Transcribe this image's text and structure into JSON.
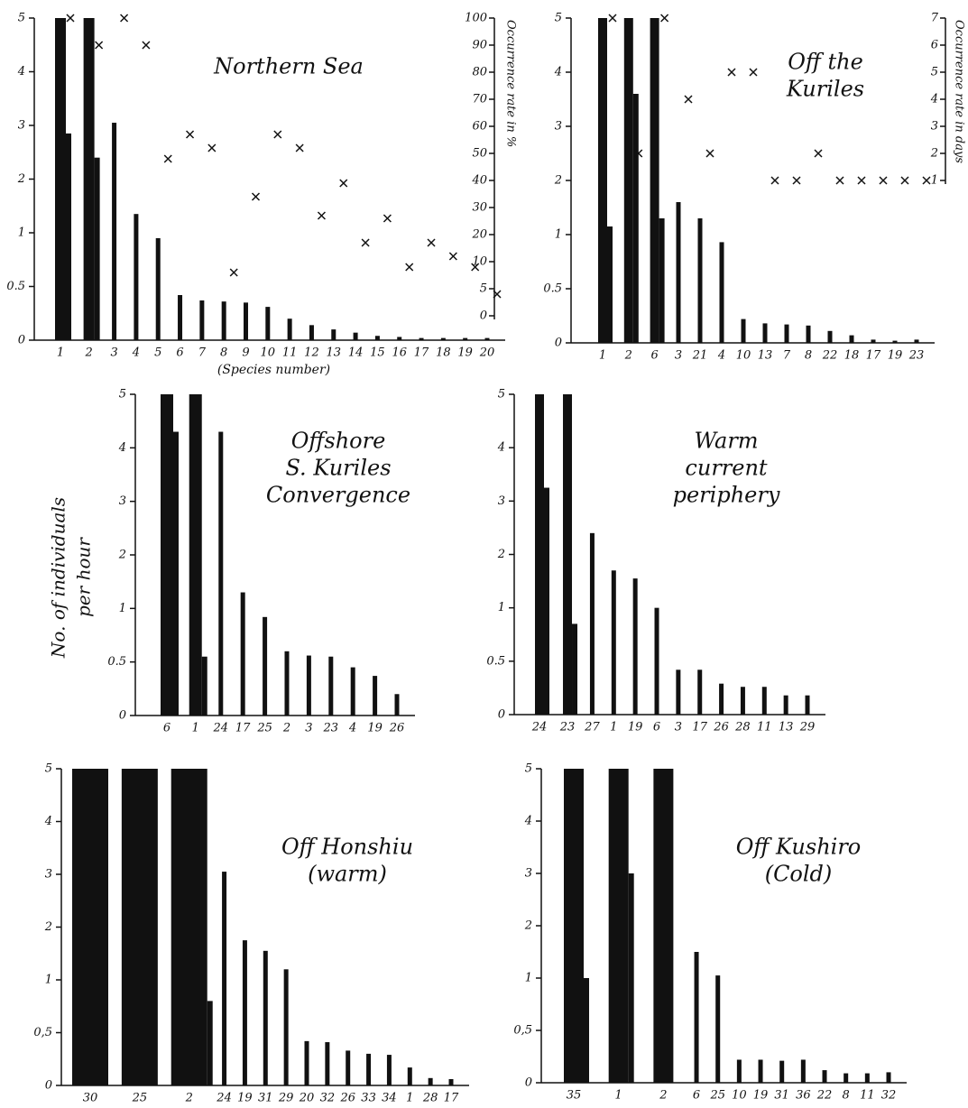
{
  "ylabel": [
    "No. of individuals",
    "per hour"
  ],
  "chart_data": [
    {
      "type": "bar",
      "title": [
        "Northern Sea"
      ],
      "xlabel": "(Species number)",
      "y2label": "Occurrence rate in %",
      "categories": [
        "1",
        "2",
        "3",
        "4",
        "5",
        "6",
        "7",
        "8",
        "9",
        "10",
        "11",
        "12",
        "13",
        "14",
        "15",
        "16",
        "17",
        "18",
        "19",
        "20"
      ],
      "series": [
        {
          "color": "#111111",
          "values": [
            5,
            5,
            3.05,
            1.35,
            0.95,
            0.42,
            0.37,
            0.36,
            0.35,
            0.31,
            0.2,
            0.14,
            0.1,
            0.07,
            0.04,
            0.03,
            0.02,
            0.02,
            0.02,
            0.02
          ]
        },
        {
          "color": "#111111",
          "values": [
            2.85,
            2.4,
            null,
            null,
            null,
            null,
            null,
            null,
            null,
            null,
            null,
            null,
            null,
            null,
            null,
            null,
            null,
            null,
            null,
            null
          ]
        },
        {
          "color": "#111111",
          "axis": "y2",
          "marker": "x",
          "values": [
            100,
            90,
            100,
            90,
            48,
            57,
            52,
            8,
            34,
            57,
            52,
            27,
            39,
            17,
            26,
            9,
            17,
            12,
            9,
            4
          ]
        }
      ],
      "ylim": [
        0,
        5
      ],
      "yticks": [
        0,
        0.5,
        1,
        2,
        3,
        4,
        5
      ],
      "yscale": "tick-spaced",
      "y2lim": [
        0,
        100
      ],
      "y2ticks": [
        0,
        5,
        10,
        20,
        30,
        40,
        50,
        60,
        70,
        80,
        90,
        100
      ],
      "y2scale": "tick-spaced"
    },
    {
      "type": "bar",
      "title": [
        "Off the",
        "Kuriles"
      ],
      "y2label": "Occurrence rate in days",
      "categories": [
        "1",
        "2",
        "6",
        "3",
        "21",
        "4",
        "10",
        "13",
        "7",
        "8",
        "22",
        "18",
        "17",
        "19",
        "23"
      ],
      "series": [
        {
          "color": "#111111",
          "values": [
            5,
            5,
            5,
            1.6,
            1.3,
            0.93,
            0.22,
            0.18,
            0.17,
            0.16,
            0.11,
            0.07,
            0.03,
            0.02,
            0.03
          ]
        },
        {
          "color": "#111111",
          "values": [
            1.15,
            3.6,
            1.3,
            null,
            null,
            null,
            null,
            null,
            null,
            null,
            null,
            null,
            null,
            null,
            null
          ]
        },
        {
          "color": "#111111",
          "axis": "y2",
          "marker": "x",
          "values": [
            7,
            2,
            7,
            4,
            2,
            5,
            5,
            1,
            1,
            2,
            1,
            1,
            1,
            1,
            1
          ]
        }
      ],
      "ylim": [
        0,
        5
      ],
      "yticks": [
        0,
        0.5,
        1,
        2,
        3,
        4,
        5
      ],
      "yscale": "tick-spaced",
      "y2lim": [
        1,
        7
      ],
      "y2ticks": [
        1,
        2,
        3,
        4,
        5,
        6,
        7
      ]
    },
    {
      "type": "bar",
      "title": [
        "Offshore",
        "S. Kuriles",
        "Convergence"
      ],
      "categories": [
        "6",
        "1",
        "24",
        "17",
        "25",
        "2",
        "3",
        "23",
        "4",
        "19",
        "26"
      ],
      "series": [
        {
          "color": "#111111",
          "values": [
            5,
            5,
            4.3,
            1.3,
            0.92,
            0.6,
            0.56,
            0.55,
            0.45,
            0.37,
            0.2
          ]
        },
        {
          "color": "#111111",
          "values": [
            4.3,
            0.55,
            null,
            null,
            null,
            null,
            null,
            null,
            null,
            null,
            null
          ]
        }
      ],
      "ylim": [
        0,
        5
      ],
      "yticks": [
        0,
        0.5,
        1,
        2,
        3,
        4,
        5
      ],
      "yscale": "tick-spaced"
    },
    {
      "type": "bar",
      "title": [
        "Warm",
        "current",
        "periphery"
      ],
      "categories": [
        "24",
        "23",
        "27",
        "1",
        "19",
        "6",
        "3",
        "17",
        "26",
        "28",
        "11",
        "13",
        "29"
      ],
      "series": [
        {
          "color": "#111111",
          "values": [
            5,
            5,
            2.4,
            1.7,
            1.55,
            1.0,
            0.42,
            0.42,
            0.29,
            0.26,
            0.26,
            0.18,
            0.18
          ]
        },
        {
          "color": "#111111",
          "values": [
            3.25,
            0.85,
            null,
            null,
            null,
            null,
            null,
            null,
            null,
            null,
            null,
            null,
            null
          ]
        }
      ],
      "ylim": [
        0,
        5
      ],
      "yticks": [
        0,
        0.5,
        1,
        2,
        3,
        4,
        5
      ],
      "yscale": "tick-spaced"
    },
    {
      "type": "bar",
      "title": [
        "Off Honshiu",
        "(warm)"
      ],
      "categories": [
        "30",
        "25",
        "2",
        "24",
        "19",
        "31",
        "29",
        "20",
        "32",
        "26",
        "33",
        "34",
        "1",
        "28",
        "17"
      ],
      "series": [
        {
          "color": "#111111",
          "values": [
            5,
            5,
            5,
            3.05,
            1.75,
            1.55,
            1.2,
            0.42,
            0.41,
            0.33,
            0.3,
            0.29,
            0.17,
            0.07,
            0.06
          ]
        },
        {
          "color": "#111111",
          "values": [
            null,
            null,
            0.8,
            null,
            null,
            null,
            null,
            null,
            null,
            null,
            null,
            null,
            null,
            null,
            null
          ]
        }
      ],
      "ylim": [
        0,
        5
      ],
      "yticks": [
        0,
        {
          "value": 0.5,
          "label": "0,5"
        },
        1,
        2,
        3,
        4,
        5
      ],
      "yscale": "tick-spaced"
    },
    {
      "type": "bar",
      "title": [
        "Off Kushiro",
        "(Cold)"
      ],
      "categories": [
        "35",
        "1",
        "2",
        "6",
        "25",
        "10",
        "19",
        "31",
        "36",
        "22",
        "8",
        "11",
        "32"
      ],
      "series": [
        {
          "color": "#111111",
          "values": [
            5,
            5,
            5,
            1.5,
            1.05,
            0.22,
            0.22,
            0.21,
            0.22,
            0.12,
            0.09,
            0.09,
            0.1
          ]
        },
        {
          "color": "#111111",
          "values": [
            1.0,
            3.0,
            null,
            null,
            null,
            null,
            null,
            null,
            null,
            null,
            null,
            null,
            null
          ]
        }
      ],
      "ylim": [
        0,
        5
      ],
      "yticks": [
        0,
        {
          "value": 0.5,
          "label": "0,5"
        },
        1,
        2,
        3,
        4,
        5
      ],
      "yscale": "tick-spaced"
    }
  ]
}
